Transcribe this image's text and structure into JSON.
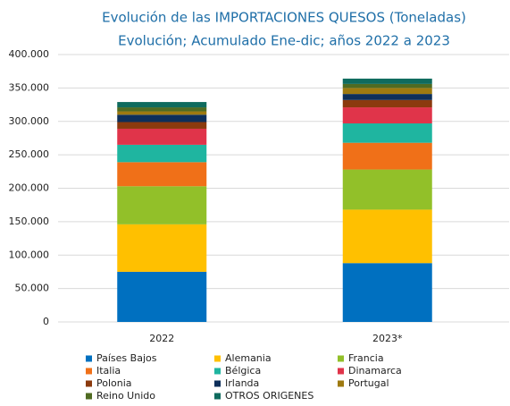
{
  "chart_data": {
    "type": "stacked_bar",
    "title": "Evolución de las IMPORTACIONES QUESOS (Toneladas)",
    "subtitle": "Evolución; Acumulado Ene-dic; años 2022 a 2023",
    "categories": [
      "2022",
      "2023*"
    ],
    "series": [
      {
        "name": "Países Bajos",
        "color": "#0070c0",
        "values": [
          75000,
          88000
        ]
      },
      {
        "name": "Alemania",
        "color": "#ffc000",
        "values": [
          71000,
          80000
        ]
      },
      {
        "name": "Francia",
        "color": "#92c029",
        "values": [
          57000,
          60000
        ]
      },
      {
        "name": "Italia",
        "color": "#f07018",
        "values": [
          36000,
          40000
        ]
      },
      {
        "name": "Bélgica",
        "color": "#1fb5a0",
        "values": [
          26000,
          29000
        ]
      },
      {
        "name": "Dinamarca",
        "color": "#e0344a",
        "values": [
          24000,
          24000
        ]
      },
      {
        "name": "Polonia",
        "color": "#8b3a0e",
        "values": [
          10000,
          11000
        ]
      },
      {
        "name": "Irlanda",
        "color": "#0d2f5a",
        "values": [
          11000,
          9000
        ]
      },
      {
        "name": "Portugal",
        "color": "#9e7a10",
        "values": [
          5000,
          9000
        ]
      },
      {
        "name": "Reino Unido",
        "color": "#4f6b22",
        "values": [
          6000,
          6000
        ]
      },
      {
        "name": "OTROS ORIGENES",
        "color": "#0f6b5e",
        "values": [
          8000,
          8000
        ]
      }
    ],
    "ylim": [
      0,
      400000
    ],
    "yticks": [
      0,
      {
        "value": 50000,
        "label": "50.000"
      },
      {
        "value": 100000,
        "label": "100.000"
      },
      {
        "value": 150000,
        "label": "150.000"
      },
      {
        "value": 200000,
        "label": "200.000"
      },
      {
        "value": 250000,
        "label": "250.000"
      },
      {
        "value": 300000,
        "label": "300.000"
      },
      {
        "value": 350000,
        "label": "350.000"
      },
      {
        "value": 400000,
        "label": "400.000"
      }
    ],
    "grid": true
  }
}
